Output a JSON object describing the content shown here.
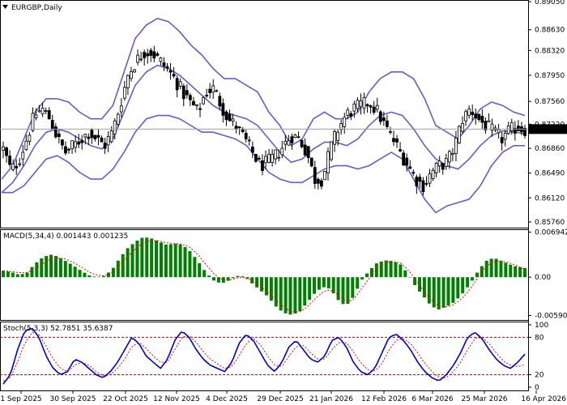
{
  "window": {
    "symbol_title": "EURGBP,Daily",
    "dropdown_icon": "triangle-down-icon"
  },
  "colors": {
    "bullish": "#ffffff",
    "bearish": "#000000",
    "bollinger": "#6a5acd",
    "macd_histogram": "#008000",
    "macd_signal": "#ff0000",
    "stoch_main": "#0000cd",
    "stoch_signal": "#ff0000",
    "current_price_line": "#a0a0a0"
  },
  "chart_data": [
    {
      "type": "candlestick",
      "panel": "price",
      "title": "EURGBP,Daily",
      "ylim": [
        0.857,
        0.8905
      ],
      "y_ticks": [
        "0.89050",
        "0.88630",
        "0.88320",
        "0.87950",
        "0.87560",
        "0.87220",
        "0.86860",
        "0.86490",
        "0.86120",
        "0.85760"
      ],
      "current_price": "0.87147",
      "x_ticks": [
        "1 Sep 2025",
        "30 Sep 2025",
        "22 Oct 2025",
        "12 Nov 2025",
        "4 Dec 2025",
        "29 Dec 2025",
        "21 Jan 2026",
        "12 Feb 2026",
        "6 Mar 2026",
        "25 Mar 2026",
        "16 Apr 2026"
      ],
      "close_path": [
        0.8685,
        0.8652,
        0.8668,
        0.87,
        0.8735,
        0.8745,
        0.873,
        0.87,
        0.868,
        0.869,
        0.87,
        0.871,
        0.87,
        0.869,
        0.871,
        0.875,
        0.8795,
        0.8815,
        0.883,
        0.883,
        0.8818,
        0.8805,
        0.879,
        0.877,
        0.8755,
        0.874,
        0.877,
        0.8775,
        0.875,
        0.8728,
        0.8718,
        0.87,
        0.868,
        0.866,
        0.8665,
        0.8675,
        0.869,
        0.8705,
        0.87,
        0.868,
        0.864,
        0.864,
        0.8685,
        0.8715,
        0.8735,
        0.8745,
        0.875,
        0.8755,
        0.8742,
        0.872,
        0.87,
        0.868,
        0.866,
        0.864,
        0.863,
        0.865,
        0.866,
        0.8665,
        0.869,
        0.873,
        0.8745,
        0.873,
        0.872,
        0.871,
        0.87,
        0.8712,
        0.8718,
        0.8714
      ],
      "bollinger": {
        "upper": [
          0.864,
          0.866,
          0.87,
          0.874,
          0.876,
          0.876,
          0.8755,
          0.874,
          0.873,
          0.873,
          0.875,
          0.88,
          0.885,
          0.887,
          0.888,
          0.8875,
          0.886,
          0.884,
          0.8825,
          0.8805,
          0.879,
          0.879,
          0.878,
          0.877,
          0.874,
          0.872,
          0.869,
          0.87,
          0.873,
          0.874,
          0.873,
          0.873,
          0.874,
          0.877,
          0.879,
          0.88,
          0.88,
          0.879,
          0.876,
          0.872,
          0.871,
          0.87,
          0.872,
          0.8745,
          0.8755,
          0.875,
          0.874,
          0.8735
        ],
        "middle": [
          0.862,
          0.8635,
          0.866,
          0.869,
          0.871,
          0.8715,
          0.871,
          0.87,
          0.869,
          0.8685,
          0.87,
          0.874,
          0.878,
          0.88,
          0.881,
          0.8805,
          0.8795,
          0.878,
          0.8765,
          0.875,
          0.874,
          0.8735,
          0.873,
          0.872,
          0.87,
          0.868,
          0.8665,
          0.867,
          0.8685,
          0.8695,
          0.8695,
          0.869,
          0.87,
          0.872,
          0.8735,
          0.874,
          0.8735,
          0.8715,
          0.869,
          0.867,
          0.866,
          0.8655,
          0.867,
          0.869,
          0.8705,
          0.8712,
          0.871,
          0.8708
        ],
        "lower": [
          0.862,
          0.862,
          0.863,
          0.865,
          0.867,
          0.8675,
          0.8665,
          0.865,
          0.864,
          0.864,
          0.8655,
          0.868,
          0.871,
          0.873,
          0.8735,
          0.8735,
          0.873,
          0.872,
          0.871,
          0.871,
          0.8705,
          0.87,
          0.869,
          0.867,
          0.865,
          0.864,
          0.8635,
          0.8635,
          0.8645,
          0.8655,
          0.866,
          0.866,
          0.8655,
          0.866,
          0.867,
          0.868,
          0.867,
          0.864,
          0.861,
          0.859,
          0.86,
          0.8605,
          0.861,
          0.863,
          0.866,
          0.868,
          0.869,
          0.869
        ]
      }
    },
    {
      "type": "bar",
      "panel": "macd",
      "title": "MACD(5,34,4) 0.001443 0.001235",
      "y_ticks": [
        "0.006942",
        "0.00",
        "-0.005908"
      ],
      "ylim": [
        -0.0066,
        0.0074
      ],
      "histogram": [
        0.001,
        0.0008,
        0.0004,
        0.0006,
        0.002,
        0.003,
        0.0035,
        0.0032,
        0.0025,
        0.0018,
        0.001,
        0.0003,
        0.0,
        0.0002,
        0.0012,
        0.003,
        0.0045,
        0.0055,
        0.0062,
        0.006,
        0.0055,
        0.005,
        0.0052,
        0.005,
        0.004,
        0.0025,
        0.0008,
        -0.0005,
        -0.001,
        -0.0005,
        0.0002,
        0.0001,
        -0.001,
        -0.002,
        -0.003,
        -0.0045,
        -0.0055,
        -0.0058,
        -0.0054,
        -0.004,
        -0.0025,
        -0.0015,
        -0.0018,
        -0.0035,
        -0.0045,
        -0.003,
        -0.0005,
        0.001,
        0.0022,
        0.0026,
        0.0025,
        0.002,
        0.0005,
        -0.0015,
        -0.003,
        -0.0045,
        -0.005,
        -0.0045,
        -0.0038,
        -0.0025,
        -0.001,
        0.001,
        0.0025,
        0.003,
        0.0025,
        0.002,
        0.0016,
        0.0014
      ],
      "signal": [
        0.001,
        0.0009,
        0.0007,
        0.0007,
        0.0012,
        0.002,
        0.0028,
        0.003,
        0.0028,
        0.0023,
        0.0016,
        0.0008,
        0.0003,
        0.0002,
        0.0007,
        0.0018,
        0.0032,
        0.0044,
        0.0053,
        0.0057,
        0.0056,
        0.0053,
        0.0052,
        0.0051,
        0.0046,
        0.0035,
        0.002,
        0.0006,
        -0.0004,
        -0.0005,
        -0.0001,
        0.0,
        -0.0005,
        -0.0013,
        -0.0023,
        -0.0035,
        -0.0046,
        -0.0053,
        -0.0054,
        -0.0047,
        -0.0034,
        -0.0023,
        -0.0019,
        -0.0027,
        -0.0038,
        -0.0035,
        -0.0018,
        -0.0002,
        0.0013,
        0.0022,
        0.0024,
        0.0022,
        0.0012,
        -0.0005,
        -0.0021,
        -0.0036,
        -0.0045,
        -0.0046,
        -0.0042,
        -0.0032,
        -0.0018,
        0.0,
        0.0016,
        0.0025,
        0.0025,
        0.0022,
        0.0018,
        0.0012
      ]
    },
    {
      "type": "line",
      "panel": "stochastic",
      "title": "Stoch(5,3,3) 52.7851 35.6387",
      "y_ticks": [
        "100",
        "80",
        "20",
        "0"
      ],
      "ylim": [
        0,
        100
      ],
      "levels": [
        80,
        20
      ],
      "series": [
        {
          "values": [
            5,
            20,
            60,
            90,
            95,
            80,
            50,
            30,
            20,
            25,
            45,
            40,
            30,
            20,
            15,
            25,
            40,
            60,
            80,
            70,
            50,
            40,
            30,
            45,
            75,
            90,
            80,
            60,
            45,
            35,
            30,
            25,
            40,
            70,
            85,
            75,
            55,
            35,
            25,
            40,
            65,
            75,
            60,
            45,
            40,
            50,
            75,
            80,
            65,
            40,
            25,
            20,
            30,
            55,
            80,
            85,
            75,
            60,
            40,
            25,
            15,
            10,
            20,
            35,
            55,
            80,
            88,
            78,
            60,
            45,
            35,
            30,
            40,
            53
          ]
        },
        {
          "values": [
            10,
            15,
            40,
            70,
            88,
            85,
            65,
            45,
            30,
            25,
            35,
            40,
            35,
            25,
            18,
            20,
            30,
            45,
            65,
            72,
            62,
            50,
            40,
            40,
            60,
            80,
            83,
            72,
            57,
            45,
            37,
            30,
            33,
            50,
            70,
            78,
            68,
            50,
            35,
            33,
            50,
            65,
            67,
            55,
            45,
            45,
            60,
            72,
            72,
            57,
            40,
            28,
            25,
            38,
            60,
            75,
            78,
            70,
            55,
            38,
            25,
            15,
            15,
            25,
            40,
            60,
            78,
            80,
            70,
            55,
            42,
            35,
            33,
            36
          ]
        }
      ]
    }
  ]
}
